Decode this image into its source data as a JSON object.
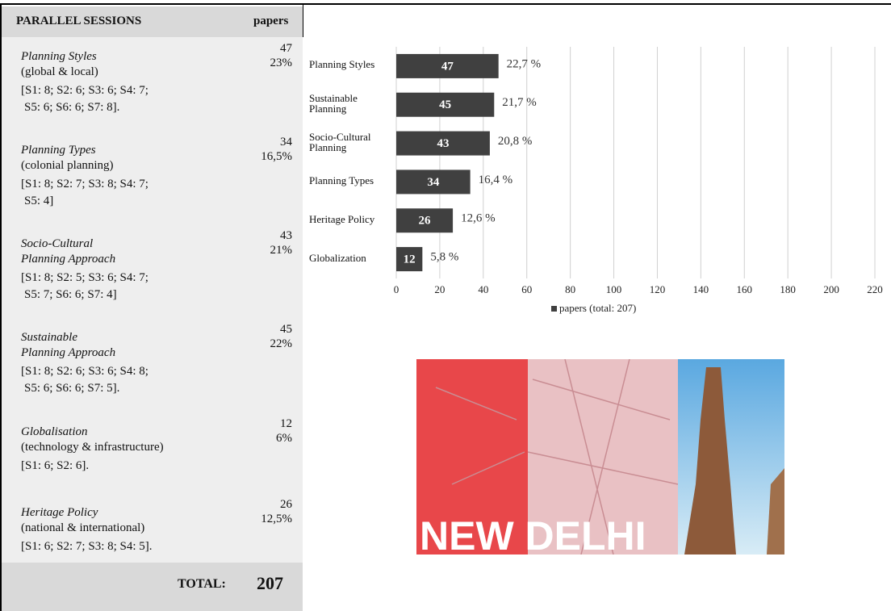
{
  "sessions": {
    "header": {
      "title": "PARALLEL SESSIONS",
      "papers": "papers"
    },
    "rows": [
      {
        "title": [
          "Planning Styles"
        ],
        "subtitle": "(global & local)",
        "count": "47",
        "percent": "23%",
        "detail": [
          "[S1: 8;  S2: 6; S3: 6; S4: 7;",
          "S5: 6; S6: 6; S7: 8]."
        ]
      },
      {
        "title": [
          "Planning Types"
        ],
        "subtitle": "(colonial planning)",
        "count": "34",
        "percent": "16,5%",
        "detail": [
          "[S1: 8;  S2: 7;  S3: 8; S4: 7;",
          "S5: 4]"
        ]
      },
      {
        "title": [
          "Socio-Cultural",
          "Planning Approach"
        ],
        "count": "43",
        "percent": "21%",
        "detail": [
          "[S1: 8; S2: 5; S3: 6; S4: 7;",
          "S5: 7; S6: 6; S7: 4]"
        ]
      },
      {
        "title": [
          "Sustainable",
          "Planning Approach"
        ],
        "count": "45",
        "percent": "22%",
        "detail": [
          "[S1: 8; S2: 6; S3: 6; S4: 8;",
          "S5: 6; S6: 6; S7: 5]."
        ]
      },
      {
        "title": [
          "Globalisation"
        ],
        "subtitle": "(technology & infrastructure)",
        "count": "12",
        "percent": "6%",
        "detail": [
          "[S1: 6; S2: 6]."
        ]
      },
      {
        "title": [
          "Heritage Policy"
        ],
        "subtitle": "(national & international)",
        "count": "26",
        "percent": "12,5%",
        "detail": [
          "[S1: 6; S2: 7; S3: 8; S4: 5]."
        ]
      }
    ],
    "total": {
      "label": "TOTAL:",
      "value": "207"
    }
  },
  "chart_data": {
    "type": "hbar",
    "categories": [
      "Planning Styles",
      "Sustainable Planning",
      "Socio-Cultural Planning",
      "Planning Types",
      "Heritage Policy",
      "Globalization"
    ],
    "series": [
      {
        "name": "papers (total: 207)",
        "color": "#404040",
        "values": [
          47,
          45,
          43,
          34,
          26,
          12
        ]
      }
    ],
    "percent_labels": [
      "22,7 %",
      "21,7 %",
      "20,8 %",
      "16,4 %",
      "12,6 %",
      "5,8 %"
    ],
    "xlim": [
      0,
      220
    ],
    "xticks": [
      0,
      20,
      40,
      60,
      80,
      100,
      120,
      140,
      160,
      180,
      200,
      220
    ],
    "grid": true,
    "legend": "bottom"
  },
  "image": {
    "caption": "NEW DELHI"
  }
}
